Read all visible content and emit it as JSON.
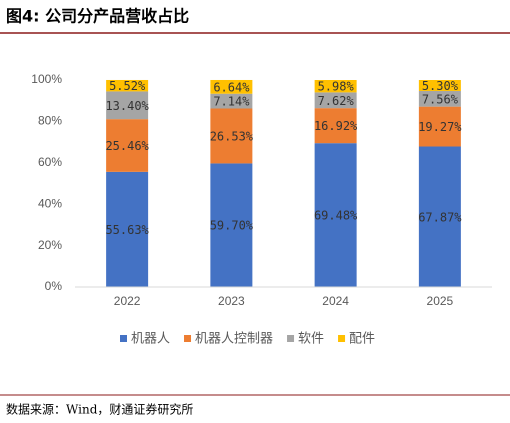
{
  "chart_data": {
    "type": "stacked_bar",
    "title": "图4: 公司分产品营收占比",
    "source": "数据来源：Wind，财通证券研究所",
    "categories": [
      "2022",
      "2023",
      "2024",
      "2025"
    ],
    "series": [
      {
        "name": "机器人",
        "color": "#4472c4",
        "values": [
          55.63,
          59.7,
          69.48,
          67.87
        ],
        "value_labels": [
          "55.63%",
          "59.70%",
          "69.48%",
          "67.87%"
        ]
      },
      {
        "name": "机器人控制器",
        "color": "#ed7d31",
        "values": [
          25.46,
          26.53,
          16.92,
          19.27
        ],
        "value_labels": [
          "25.46%",
          "26.53%",
          "16.92%",
          "19.27%"
        ]
      },
      {
        "name": "软件",
        "color": "#a5a5a5",
        "values": [
          13.4,
          7.14,
          7.62,
          7.56
        ],
        "value_labels": [
          "13.40%",
          "7.14%",
          "7.62%",
          "7.56%"
        ]
      },
      {
        "name": "配件",
        "color": "#ffc000",
        "values": [
          5.52,
          6.64,
          5.98,
          5.3
        ],
        "value_labels": [
          "5.52%",
          "6.64%",
          "5.98%",
          "5.30%"
        ]
      }
    ],
    "ylim": [
      0,
      100
    ],
    "yticks": [
      {
        "value": 0,
        "label": "0%"
      },
      {
        "value": 20,
        "label": "20%"
      },
      {
        "value": 40,
        "label": "40%"
      },
      {
        "value": 60,
        "label": "60%"
      },
      {
        "value": 80,
        "label": "80%"
      },
      {
        "value": 100,
        "label": "100%"
      }
    ],
    "grid": false,
    "legend": "bottom"
  }
}
